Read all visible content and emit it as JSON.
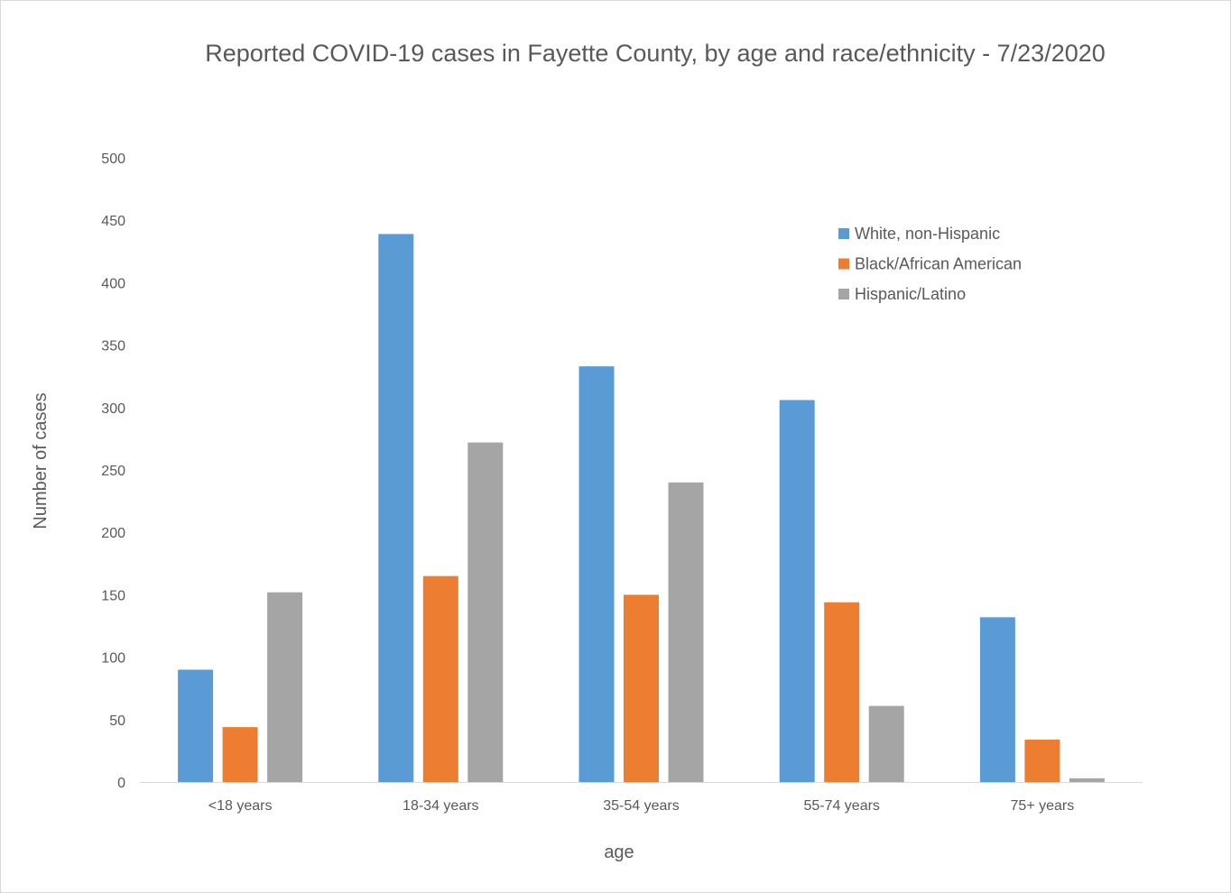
{
  "chart_data": {
    "type": "bar",
    "title": "Reported COVID-19 cases in Fayette County, by age and race/ethnicity - 7/23/2020",
    "xlabel": "age",
    "ylabel": "Number of cases",
    "categories": [
      "<18 years",
      "18-34 years",
      "35-54 years",
      "55-74 years",
      "75+ years"
    ],
    "series": [
      {
        "name": "White, non-Hispanic",
        "color": "#5b9bd5",
        "values": [
          90,
          439,
          333,
          306,
          132
        ]
      },
      {
        "name": "Black/African American",
        "color": "#ed7d31",
        "values": [
          44,
          165,
          150,
          144,
          34
        ]
      },
      {
        "name": "Hispanic/Latino",
        "color": "#a5a5a5",
        "values": [
          152,
          272,
          240,
          61,
          3
        ]
      }
    ],
    "ylim": [
      0,
      500
    ],
    "yticks": [
      0,
      50,
      100,
      150,
      200,
      250,
      300,
      350,
      400,
      450,
      500
    ],
    "grid": false,
    "legend_position": "top-right"
  }
}
